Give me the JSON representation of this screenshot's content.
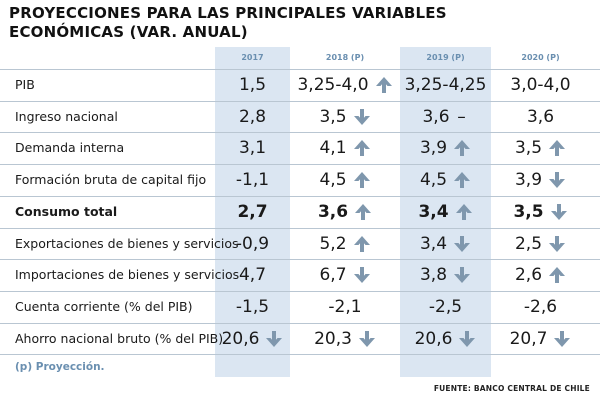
{
  "title": {
    "line1": "PROYECCIONES PARA LAS PRINCIPALES VARIABLES",
    "line2": "ECONÓMICAS (VAR. ANUAL)"
  },
  "columns": [
    "2017",
    "2018 (P)",
    "2019 (P)",
    "2020 (P)"
  ],
  "arrow_color": "#7f97ad",
  "stripe_color": "#dbe6f2",
  "rows": [
    {
      "label": "PIB",
      "bold": false,
      "cells": [
        {
          "value": "1,5",
          "trend": "none"
        },
        {
          "value": "3,25-4,0",
          "trend": "up"
        },
        {
          "value": "3,25-4,25",
          "trend": "none"
        },
        {
          "value": "3,0-4,0",
          "trend": "none"
        }
      ]
    },
    {
      "label": "Ingreso nacional",
      "bold": false,
      "cells": [
        {
          "value": "2,8",
          "trend": "none"
        },
        {
          "value": "3,5",
          "trend": "down"
        },
        {
          "value": "3,6",
          "trend": "flat"
        },
        {
          "value": "3,6",
          "trend": "none"
        }
      ]
    },
    {
      "label": "Demanda interna",
      "bold": false,
      "cells": [
        {
          "value": "3,1",
          "trend": "none"
        },
        {
          "value": "4,1",
          "trend": "up"
        },
        {
          "value": "3,9",
          "trend": "up"
        },
        {
          "value": "3,5",
          "trend": "up"
        }
      ]
    },
    {
      "label": "Formación bruta de capital fijo",
      "bold": false,
      "cells": [
        {
          "value": "-1,1",
          "trend": "none"
        },
        {
          "value": "4,5",
          "trend": "up"
        },
        {
          "value": "4,5",
          "trend": "up"
        },
        {
          "value": "3,9",
          "trend": "down"
        }
      ]
    },
    {
      "label": "Consumo total",
      "bold": true,
      "cells": [
        {
          "value": "2,7",
          "trend": "none"
        },
        {
          "value": "3,6",
          "trend": "up"
        },
        {
          "value": "3,4",
          "trend": "up"
        },
        {
          "value": "3,5",
          "trend": "down"
        }
      ]
    },
    {
      "label": "Exportaciones de bienes y servicios",
      "bold": false,
      "cells": [
        {
          "value": "-0,9",
          "trend": "none"
        },
        {
          "value": "5,2",
          "trend": "up"
        },
        {
          "value": "3,4",
          "trend": "down"
        },
        {
          "value": "2,5",
          "trend": "down"
        }
      ]
    },
    {
      "label": "Importaciones de bienes y servicios",
      "bold": false,
      "cells": [
        {
          "value": "4,7",
          "trend": "none"
        },
        {
          "value": "6,7",
          "trend": "down"
        },
        {
          "value": "3,8",
          "trend": "down"
        },
        {
          "value": "2,6",
          "trend": "up"
        }
      ]
    },
    {
      "label": "Cuenta corriente (% del PIB)",
      "bold": false,
      "cells": [
        {
          "value": "-1,5",
          "trend": "none"
        },
        {
          "value": "-2,1",
          "trend": "none"
        },
        {
          "value": "-2,5",
          "trend": "none"
        },
        {
          "value": "-2,6",
          "trend": "none"
        }
      ]
    },
    {
      "label": "Ahorro nacional bruto (% del PIB)",
      "bold": false,
      "cells": [
        {
          "value": "20,6",
          "trend": "down"
        },
        {
          "value": "20,3",
          "trend": "down"
        },
        {
          "value": "20,6",
          "trend": "down"
        },
        {
          "value": "20,7",
          "trend": "down"
        }
      ]
    }
  ],
  "note": "(p) Proyección.",
  "source": "FUENTE: BANCO CENTRAL DE CHILE"
}
